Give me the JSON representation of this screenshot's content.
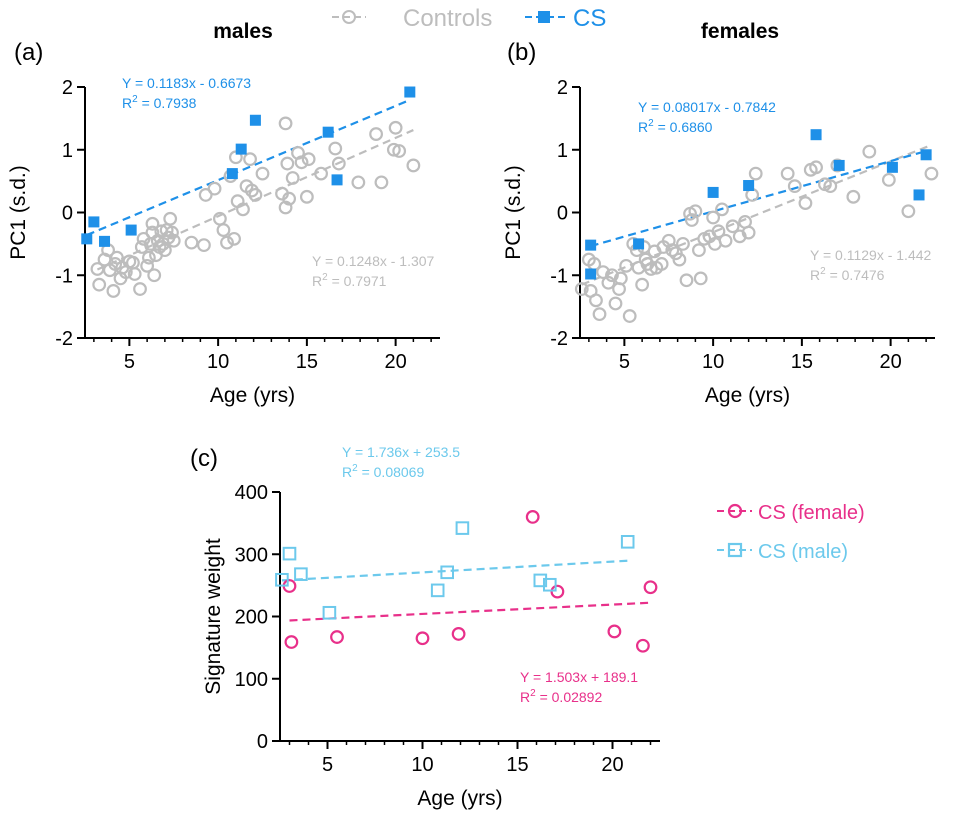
{
  "legend_top": {
    "controls": {
      "label": "Controls",
      "color": "#bdbdbd"
    },
    "cs": {
      "label": "CS",
      "color": "#1e90e8"
    }
  },
  "legend_c": {
    "female": {
      "label": "CS (female)",
      "color": "#e8308a"
    },
    "male": {
      "label": "CS (male)",
      "color": "#6cc9ec"
    }
  },
  "chart_data": [
    {
      "panel": "(a)",
      "type": "scatter",
      "title": "males",
      "xlabel": "Age (yrs)",
      "ylabel": "PC1 (s.d.)",
      "xlim": [
        2.5,
        22.5
      ],
      "ylim": [
        -2,
        2
      ],
      "xticks": [
        5,
        10,
        15,
        20
      ],
      "yticks": [
        -2,
        -1,
        0,
        1,
        2
      ],
      "series": [
        {
          "name": "Controls",
          "color": "#bdbdbd",
          "marker": "circle-open",
          "fit": {
            "slope": 0.1248,
            "intercept": -1.307,
            "equation": "Y = 0.1248x - 1.307",
            "r2_prefix": "R",
            "r2_sup": "2",
            "r2_value": " = 0.7971"
          },
          "points": [
            [
              3.2,
              -0.9
            ],
            [
              3.3,
              -1.15
            ],
            [
              3.6,
              -0.75
            ],
            [
              3.8,
              -0.6
            ],
            [
              3.9,
              -0.92
            ],
            [
              4.1,
              -1.25
            ],
            [
              4.2,
              -0.82
            ],
            [
              4.3,
              -0.72
            ],
            [
              4.5,
              -1.05
            ],
            [
              4.6,
              -0.88
            ],
            [
              4.8,
              -0.95
            ],
            [
              5.0,
              -0.78
            ],
            [
              5.2,
              -0.8
            ],
            [
              5.3,
              -0.98
            ],
            [
              5.6,
              -1.22
            ],
            [
              5.7,
              -0.55
            ],
            [
              5.8,
              -0.42
            ],
            [
              6.0,
              -0.85
            ],
            [
              6.1,
              -0.72
            ],
            [
              6.2,
              -0.5
            ],
            [
              6.3,
              -0.32
            ],
            [
              6.3,
              -0.18
            ],
            [
              6.4,
              -1.0
            ],
            [
              6.5,
              -0.68
            ],
            [
              6.6,
              -0.45
            ],
            [
              6.7,
              -0.55
            ],
            [
              6.8,
              -0.3
            ],
            [
              6.9,
              -0.5
            ],
            [
              7.0,
              -0.6
            ],
            [
              7.1,
              -0.28
            ],
            [
              7.2,
              -0.4
            ],
            [
              7.3,
              -0.1
            ],
            [
              7.4,
              -0.32
            ],
            [
              7.5,
              -0.45
            ],
            [
              8.5,
              -0.48
            ],
            [
              9.2,
              -0.52
            ],
            [
              9.3,
              0.28
            ],
            [
              9.8,
              0.38
            ],
            [
              10.1,
              -0.1
            ],
            [
              10.3,
              -0.28
            ],
            [
              10.5,
              -0.48
            ],
            [
              10.7,
              0.58
            ],
            [
              10.9,
              -0.42
            ],
            [
              11.0,
              0.88
            ],
            [
              11.1,
              0.18
            ],
            [
              11.4,
              0.05
            ],
            [
              11.6,
              0.42
            ],
            [
              11.8,
              0.85
            ],
            [
              11.9,
              0.35
            ],
            [
              12.1,
              0.28
            ],
            [
              12.5,
              0.62
            ],
            [
              13.6,
              0.3
            ],
            [
              13.8,
              0.08
            ],
            [
              13.9,
              0.78
            ],
            [
              14.0,
              0.22
            ],
            [
              14.2,
              0.55
            ],
            [
              13.8,
              1.42
            ],
            [
              14.5,
              0.95
            ],
            [
              14.7,
              0.8
            ],
            [
              15.0,
              0.25
            ],
            [
              15.1,
              0.85
            ],
            [
              15.8,
              0.62
            ],
            [
              16.6,
              1.02
            ],
            [
              16.8,
              0.78
            ],
            [
              17.9,
              0.48
            ],
            [
              18.9,
              1.25
            ],
            [
              19.2,
              0.48
            ],
            [
              19.9,
              1.0
            ],
            [
              20.0,
              1.35
            ],
            [
              20.2,
              0.98
            ],
            [
              21.0,
              0.75
            ]
          ]
        },
        {
          "name": "CS",
          "color": "#1e90e8",
          "marker": "square-filled",
          "fit": {
            "slope": 0.1183,
            "intercept": -0.6673,
            "equation": "Y = 0.1183x - 0.6673",
            "r2_prefix": "R",
            "r2_sup": "2",
            "r2_value": " = 0.7938"
          },
          "points": [
            [
              2.6,
              -0.42
            ],
            [
              3.0,
              -0.15
            ],
            [
              3.6,
              -0.46
            ],
            [
              5.1,
              -0.28
            ],
            [
              10.8,
              0.62
            ],
            [
              11.3,
              1.01
            ],
            [
              12.1,
              1.47
            ],
            [
              16.2,
              1.28
            ],
            [
              16.7,
              0.52
            ],
            [
              20.8,
              1.92
            ]
          ]
        }
      ]
    },
    {
      "panel": "(b)",
      "type": "scatter",
      "title": "females",
      "xlabel": "Age (yrs)",
      "ylabel": "PC1 (s.d.)",
      "xlim": [
        2.5,
        22.5
      ],
      "ylim": [
        -2,
        2
      ],
      "xticks": [
        5,
        10,
        15,
        20
      ],
      "yticks": [
        -2,
        -1,
        0,
        1,
        2
      ],
      "series": [
        {
          "name": "Controls",
          "color": "#bdbdbd",
          "marker": "circle-open",
          "fit": {
            "slope": 0.1129,
            "intercept": -1.442,
            "equation": "Y = 0.1129x - 1.442",
            "r2_prefix": "R",
            "r2_sup": "2",
            "r2_value": " = 0.7476"
          },
          "points": [
            [
              2.6,
              -1.22
            ],
            [
              3.0,
              -0.75
            ],
            [
              3.1,
              -1.25
            ],
            [
              3.3,
              -0.82
            ],
            [
              3.4,
              -1.4
            ],
            [
              3.6,
              -1.62
            ],
            [
              3.8,
              -0.95
            ],
            [
              4.1,
              -1.12
            ],
            [
              4.3,
              -1.0
            ],
            [
              4.5,
              -1.45
            ],
            [
              4.7,
              -1.22
            ],
            [
              4.8,
              -1.05
            ],
            [
              5.1,
              -0.85
            ],
            [
              5.3,
              -1.65
            ],
            [
              5.5,
              -0.5
            ],
            [
              5.7,
              -0.6
            ],
            [
              5.8,
              -0.88
            ],
            [
              6.0,
              -1.15
            ],
            [
              6.1,
              -0.55
            ],
            [
              6.2,
              -0.75
            ],
            [
              6.3,
              -0.82
            ],
            [
              6.5,
              -0.9
            ],
            [
              6.7,
              -0.62
            ],
            [
              6.8,
              -0.88
            ],
            [
              7.1,
              -0.82
            ],
            [
              7.2,
              -0.55
            ],
            [
              7.5,
              -0.45
            ],
            [
              7.7,
              -0.6
            ],
            [
              7.9,
              -0.65
            ],
            [
              8.1,
              -0.75
            ],
            [
              8.3,
              -0.5
            ],
            [
              8.5,
              -1.08
            ],
            [
              8.7,
              -0.02
            ],
            [
              8.8,
              -0.12
            ],
            [
              9.0,
              0.02
            ],
            [
              9.2,
              -0.6
            ],
            [
              9.3,
              -1.05
            ],
            [
              9.5,
              -0.42
            ],
            [
              9.8,
              -0.38
            ],
            [
              10.0,
              -0.08
            ],
            [
              10.1,
              -0.5
            ],
            [
              10.3,
              -0.3
            ],
            [
              10.5,
              0.05
            ],
            [
              10.7,
              -0.45
            ],
            [
              11.1,
              -0.22
            ],
            [
              11.5,
              -0.38
            ],
            [
              11.8,
              -0.15
            ],
            [
              12.0,
              -0.32
            ],
            [
              12.2,
              0.28
            ],
            [
              12.4,
              0.62
            ],
            [
              14.2,
              0.62
            ],
            [
              14.6,
              0.42
            ],
            [
              15.2,
              0.15
            ],
            [
              15.5,
              0.68
            ],
            [
              15.8,
              0.72
            ],
            [
              16.3,
              0.45
            ],
            [
              16.6,
              0.42
            ],
            [
              17.0,
              0.75
            ],
            [
              17.9,
              0.25
            ],
            [
              18.8,
              0.97
            ],
            [
              19.9,
              0.52
            ],
            [
              21.0,
              0.02
            ],
            [
              22.3,
              0.62
            ]
          ]
        },
        {
          "name": "CS",
          "color": "#1e90e8",
          "marker": "square-filled",
          "fit": {
            "slope": 0.08017,
            "intercept": -0.7842,
            "equation": "Y = 0.08017x - 0.7842",
            "r2_prefix": "R",
            "r2_sup": "2",
            "r2_value": " = 0.6860"
          },
          "points": [
            [
              3.1,
              -0.98
            ],
            [
              3.1,
              -0.52
            ],
            [
              5.8,
              -0.5
            ],
            [
              10.0,
              0.32
            ],
            [
              12.0,
              0.43
            ],
            [
              15.8,
              1.24
            ],
            [
              17.1,
              0.75
            ],
            [
              20.1,
              0.72
            ],
            [
              21.6,
              0.28
            ],
            [
              22.0,
              0.92
            ]
          ]
        }
      ]
    },
    {
      "panel": "(c)",
      "type": "scatter",
      "title": "",
      "xlabel": "Age (yrs)",
      "ylabel": "Signature weight",
      "xlim": [
        2.5,
        22.5
      ],
      "ylim": [
        0,
        400
      ],
      "xticks": [
        5,
        10,
        15,
        20
      ],
      "yticks": [
        0,
        100,
        200,
        300,
        400
      ],
      "series": [
        {
          "name": "CS (female)",
          "color": "#e8308a",
          "marker": "circle-open",
          "fit": {
            "slope": 1.503,
            "intercept": 189.1,
            "equation": "Y = 1.503x + 189.1",
            "r2_prefix": "R",
            "r2_sup": "2",
            "r2_value": " = 0.02892"
          },
          "points": [
            [
              3.0,
              249
            ],
            [
              3.1,
              159
            ],
            [
              5.5,
              167
            ],
            [
              10.0,
              165
            ],
            [
              11.9,
              172
            ],
            [
              15.8,
              360
            ],
            [
              17.1,
              240
            ],
            [
              20.1,
              176
            ],
            [
              21.6,
              153
            ],
            [
              22.0,
              247
            ]
          ]
        },
        {
          "name": "CS (male)",
          "color": "#6cc9ec",
          "marker": "square-open",
          "fit": {
            "slope": 1.736,
            "intercept": 253.5,
            "equation": "Y = 1.736x + 253.5",
            "r2_prefix": "R",
            "r2_sup": "2",
            "r2_value": " = 0.08069"
          },
          "points": [
            [
              2.6,
              259
            ],
            [
              3.0,
              301
            ],
            [
              3.6,
              268
            ],
            [
              5.1,
              206
            ],
            [
              10.8,
              242
            ],
            [
              11.3,
              271
            ],
            [
              12.1,
              342
            ],
            [
              16.2,
              258
            ],
            [
              16.7,
              251
            ],
            [
              20.8,
              320
            ]
          ]
        }
      ]
    }
  ]
}
